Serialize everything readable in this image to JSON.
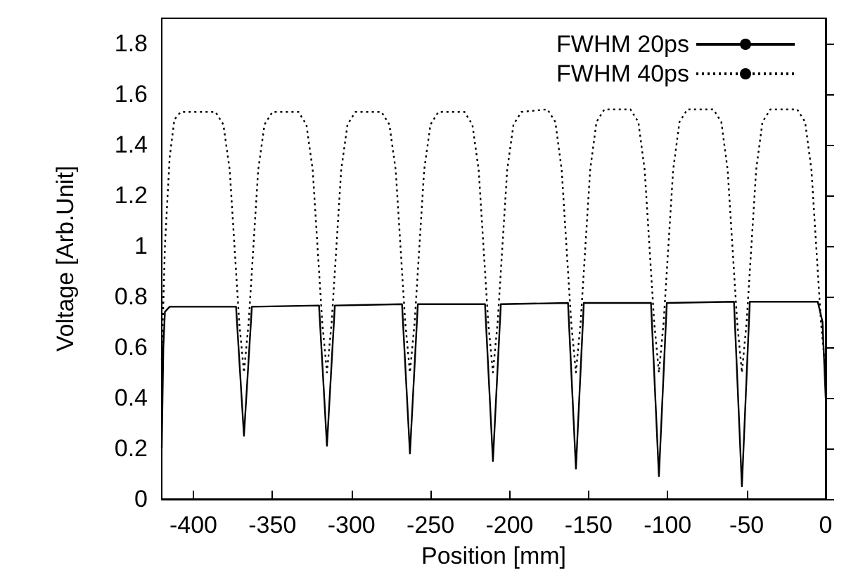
{
  "chart_data": {
    "type": "line",
    "xlabel": "Position [mm]",
    "ylabel": "Voltage [Arb.Unit]",
    "xlim": [
      -420,
      0
    ],
    "xticks": [
      -400,
      -350,
      -300,
      -250,
      -200,
      -150,
      -100,
      -50,
      0
    ],
    "ylim": [
      0,
      1.9
    ],
    "yticks": [
      0,
      0.2,
      0.4,
      0.6,
      0.8,
      1,
      1.2,
      1.4,
      1.6,
      1.8
    ],
    "grid": false,
    "legend": "top right",
    "marker": "none",
    "series": [
      {
        "name": "FWHM 20ps",
        "color": "#000000",
        "line_style": "solid",
        "x": [
          -420,
          -419,
          -418,
          -415,
          -373,
          -368,
          -363,
          -320.5,
          -315.5,
          -310.5,
          -268,
          -263,
          -258,
          -215.5,
          -210.5,
          -205.5,
          -163,
          -158,
          -153,
          -110.5,
          -105.5,
          -100.5,
          -58,
          -53,
          -48,
          -5,
          -2,
          0
        ],
        "values": [
          0.2,
          0.6,
          0.74,
          0.76,
          0.76,
          0.25,
          0.76,
          0.765,
          0.21,
          0.765,
          0.77,
          0.18,
          0.77,
          0.77,
          0.15,
          0.77,
          0.775,
          0.12,
          0.775,
          0.775,
          0.09,
          0.775,
          0.78,
          0.05,
          0.78,
          0.78,
          0.7,
          0.4
        ]
      },
      {
        "name": "FWHM 40ps",
        "color": "#000000",
        "line_style": "dotted",
        "x": [
          -420,
          -418,
          -415,
          -412,
          -408,
          -386,
          -381,
          -377,
          -374,
          -371,
          -368,
          -365,
          -362,
          -359,
          -355,
          -350,
          -333.5,
          -328.5,
          -324.5,
          -321.5,
          -318.5,
          -315.5,
          -312.5,
          -309.5,
          -306.5,
          -302.5,
          -297.5,
          -281,
          -276,
          -272,
          -269,
          -266,
          -263,
          -260,
          -257,
          -254,
          -250,
          -245,
          -228.5,
          -223.5,
          -219.5,
          -216.5,
          -213.5,
          -210.5,
          -207.5,
          -204.5,
          -201.5,
          -197.5,
          -192.5,
          -176,
          -171,
          -167,
          -164,
          -161,
          -158,
          -155,
          -152,
          -149,
          -145,
          -140,
          -123.5,
          -118.5,
          -114.5,
          -111.5,
          -108.5,
          -105.5,
          -102.5,
          -99.5,
          -96.5,
          -92.5,
          -87.5,
          -71,
          -66,
          -62,
          -59,
          -56,
          -53,
          -50,
          -47,
          -44,
          -40,
          -35,
          -18,
          -13,
          -9,
          -6,
          -3,
          0
        ],
        "values": [
          0.55,
          1.0,
          1.35,
          1.5,
          1.53,
          1.53,
          1.48,
          1.3,
          1.0,
          0.7,
          0.5,
          0.7,
          1.0,
          1.3,
          1.48,
          1.53,
          1.53,
          1.48,
          1.3,
          1.0,
          0.7,
          0.5,
          0.7,
          1.0,
          1.3,
          1.48,
          1.53,
          1.53,
          1.48,
          1.3,
          1.0,
          0.7,
          0.5,
          0.7,
          1.0,
          1.3,
          1.48,
          1.53,
          1.53,
          1.48,
          1.3,
          1.0,
          0.7,
          0.5,
          0.7,
          1.0,
          1.3,
          1.48,
          1.53,
          1.54,
          1.49,
          1.3,
          1.0,
          0.7,
          0.5,
          0.7,
          1.0,
          1.3,
          1.49,
          1.54,
          1.54,
          1.49,
          1.3,
          1.0,
          0.7,
          0.5,
          0.7,
          1.0,
          1.3,
          1.49,
          1.54,
          1.54,
          1.49,
          1.3,
          1.0,
          0.7,
          0.5,
          0.7,
          1.0,
          1.3,
          1.49,
          1.54,
          1.54,
          1.49,
          1.3,
          1.0,
          0.7,
          0.5
        ]
      }
    ]
  }
}
